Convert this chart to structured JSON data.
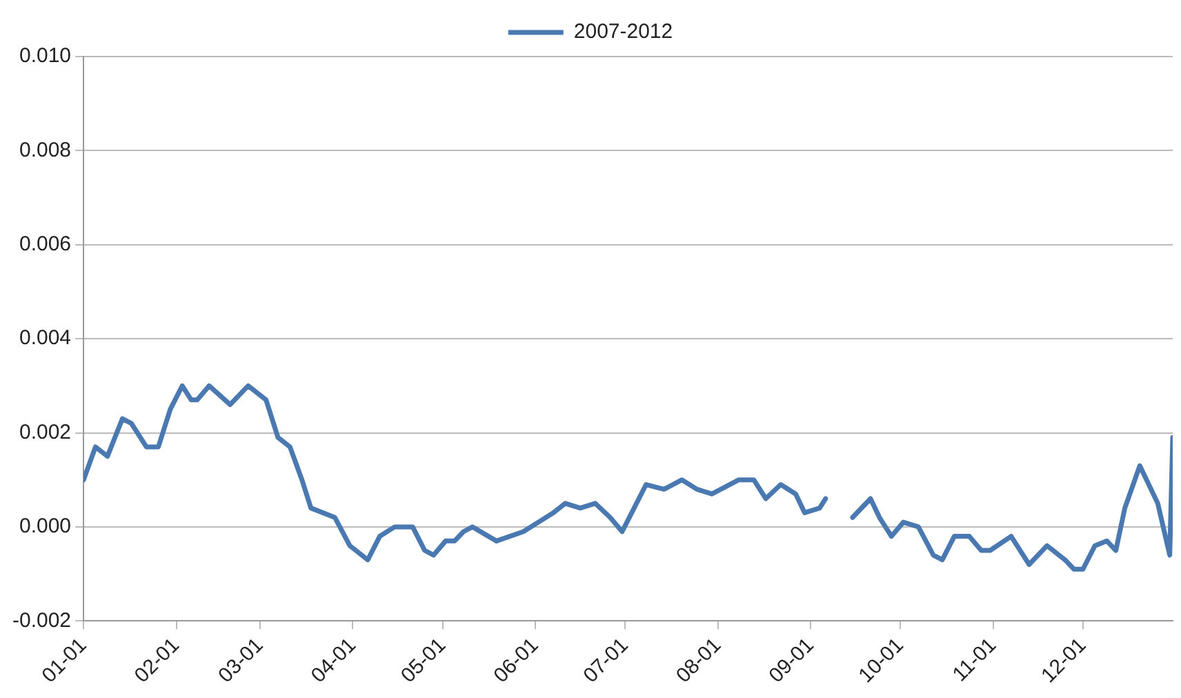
{
  "chart_data": {
    "type": "line",
    "x": [
      "--01-01",
      "--01-05",
      "--01-09",
      "--01-14",
      "--01-17",
      "--01-22",
      "--01-26",
      "--01-30",
      "--02-03",
      "--02-06",
      "--02-08",
      "--02-12",
      "--02-19",
      "--02-25",
      "--03-03",
      "--03-07",
      "--03-11",
      "--03-15",
      "--03-18",
      "--03-26",
      "--03-31",
      "--04-06",
      "--04-10",
      "--04-15",
      "--04-21",
      "--04-25",
      "--04-28",
      "--05-02",
      "--05-05",
      "--05-08",
      "--05-11",
      "--05-19",
      "--05-28",
      "--06-02",
      "--06-07",
      "--06-11",
      "--06-16",
      "--06-21",
      "--06-26",
      "--06-30",
      "--07-04",
      "--07-08",
      "--07-14",
      "--07-20",
      "--07-25",
      "--07-30",
      "--08-08",
      "--08-13",
      "--08-17",
      "--08-22",
      "--08-27",
      "--08-30",
      "--09-04",
      "--09-06",
      "--09-10",
      "--09-15",
      "--09-21",
      "--09-24",
      "--09-28",
      "--10-02",
      "--10-07",
      "--10-12",
      "--10-15",
      "--10-19",
      "--10-24",
      "--10-28",
      "--10-31",
      "--11-07",
      "--11-13",
      "--11-19",
      "--11-25",
      "--11-28",
      "--12-01",
      "--12-05",
      "--12-09",
      "--12-12",
      "--12-15",
      "--12-20",
      "--12-26",
      "--12-30",
      "--12-31"
    ],
    "series": [
      {
        "name": "2007-2012",
        "color": "#4a78b0",
        "values": [
          0.001,
          0.0017,
          0.0015,
          0.0023,
          0.0022,
          0.0017,
          0.0017,
          0.0025,
          0.003,
          0.0027,
          0.0027,
          0.003,
          0.0026,
          0.003,
          0.0027,
          0.0019,
          0.0017,
          0.001,
          0.0004,
          0.0002,
          -0.0004,
          -0.0007,
          -0.0002,
          0.0,
          0.0,
          -0.0005,
          -0.0006,
          -0.0003,
          -0.0003,
          -0.0001,
          0.0,
          -0.0003,
          -0.0001,
          0.0001,
          0.0003,
          0.0005,
          0.0004,
          0.0005,
          0.0002,
          -0.0001,
          0.0004,
          0.0009,
          0.0008,
          0.001,
          0.0008,
          0.0007,
          0.001,
          0.001,
          0.0006,
          0.0009,
          0.0007,
          0.0003,
          0.0004,
          0.0006,
          null,
          0.0002,
          0.0006,
          0.0002,
          -0.0002,
          0.0001,
          0.0,
          -0.0006,
          -0.0007,
          -0.0002,
          -0.0002,
          -0.0005,
          -0.0005,
          -0.0002,
          -0.0008,
          -0.0004,
          -0.0007,
          -0.0009,
          -0.0009,
          -0.0004,
          -0.0003,
          -0.0005,
          0.0004,
          0.0013,
          0.0005,
          -0.0006,
          0.0019
        ]
      }
    ],
    "xlim": [
      "--01-01",
      "--12-31"
    ],
    "xticks": [
      {
        "value": "--01-01",
        "label": "01-01"
      },
      {
        "value": "--02-01",
        "label": "02-01"
      },
      {
        "value": "--03-01",
        "label": "03-01"
      },
      {
        "value": "--04-01",
        "label": "04-01"
      },
      {
        "value": "--05-01",
        "label": "05-01"
      },
      {
        "value": "--06-01",
        "label": "06-01"
      },
      {
        "value": "--07-01",
        "label": "07-01"
      },
      {
        "value": "--08-01",
        "label": "08-01"
      },
      {
        "value": "--09-01",
        "label": "09-01"
      },
      {
        "value": "--10-01",
        "label": "10-01"
      },
      {
        "value": "--11-01",
        "label": "11-01"
      },
      {
        "value": "--12-01",
        "label": "12-01"
      }
    ],
    "ylim": [
      -0.002,
      0.01
    ],
    "yticks": [
      {
        "value": -0.002,
        "label": "-0.002"
      },
      {
        "value": 0,
        "label": "0.000"
      },
      {
        "value": 0.002,
        "label": "0.002"
      },
      {
        "value": 0.004,
        "label": "0.004"
      },
      {
        "value": 0.006,
        "label": "0.006"
      },
      {
        "value": 0.008,
        "label": "0.008"
      },
      {
        "value": 0.01,
        "label": "0.010"
      }
    ],
    "grid": "y",
    "legend": "top",
    "marker": "none",
    "line_style": "solid"
  }
}
